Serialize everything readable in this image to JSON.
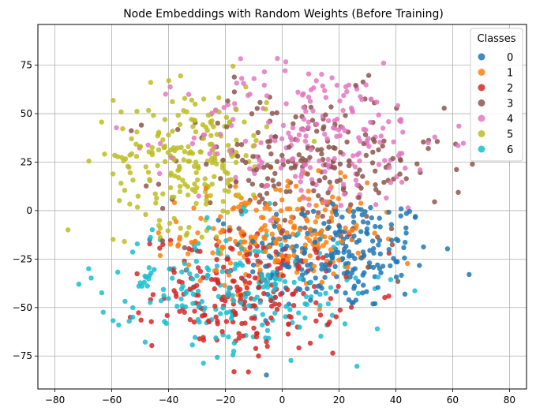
{
  "chart_data": {
    "type": "scatter",
    "title": "Node Embeddings with Random Weights (Before Training)",
    "xlabel": "",
    "ylabel": "",
    "xlim": [
      -86,
      86
    ],
    "ylim": [
      -92,
      96
    ],
    "x_ticks": [
      -80,
      -60,
      -40,
      -20,
      0,
      20,
      40,
      60,
      80
    ],
    "y_ticks": [
      -75,
      -50,
      -25,
      0,
      25,
      50,
      75
    ],
    "grid": true,
    "legend": {
      "title": "Classes",
      "placement": "top-right"
    },
    "point_count_per_class": 220,
    "series": [
      {
        "name": "0",
        "color": "#1f77b4",
        "center": [
          20,
          -22
        ],
        "spread": [
          22,
          20
        ]
      },
      {
        "name": "1",
        "color": "#ff7f0e",
        "center": [
          -2,
          -12
        ],
        "spread": [
          22,
          18
        ]
      },
      {
        "name": "2",
        "color": "#d62728",
        "center": [
          -12,
          -42
        ],
        "spread": [
          22,
          20
        ]
      },
      {
        "name": "3",
        "color": "#8c564b",
        "center": [
          8,
          22
        ],
        "spread": [
          32,
          26
        ]
      },
      {
        "name": "4",
        "color": "#e377c2",
        "center": [
          12,
          38
        ],
        "spread": [
          30,
          26
        ]
      },
      {
        "name": "5",
        "color": "#bcbd22",
        "center": [
          -32,
          28
        ],
        "spread": [
          18,
          24
        ]
      },
      {
        "name": "6",
        "color": "#17becf",
        "center": [
          -18,
          -40
        ],
        "spread": [
          30,
          22
        ]
      }
    ]
  }
}
